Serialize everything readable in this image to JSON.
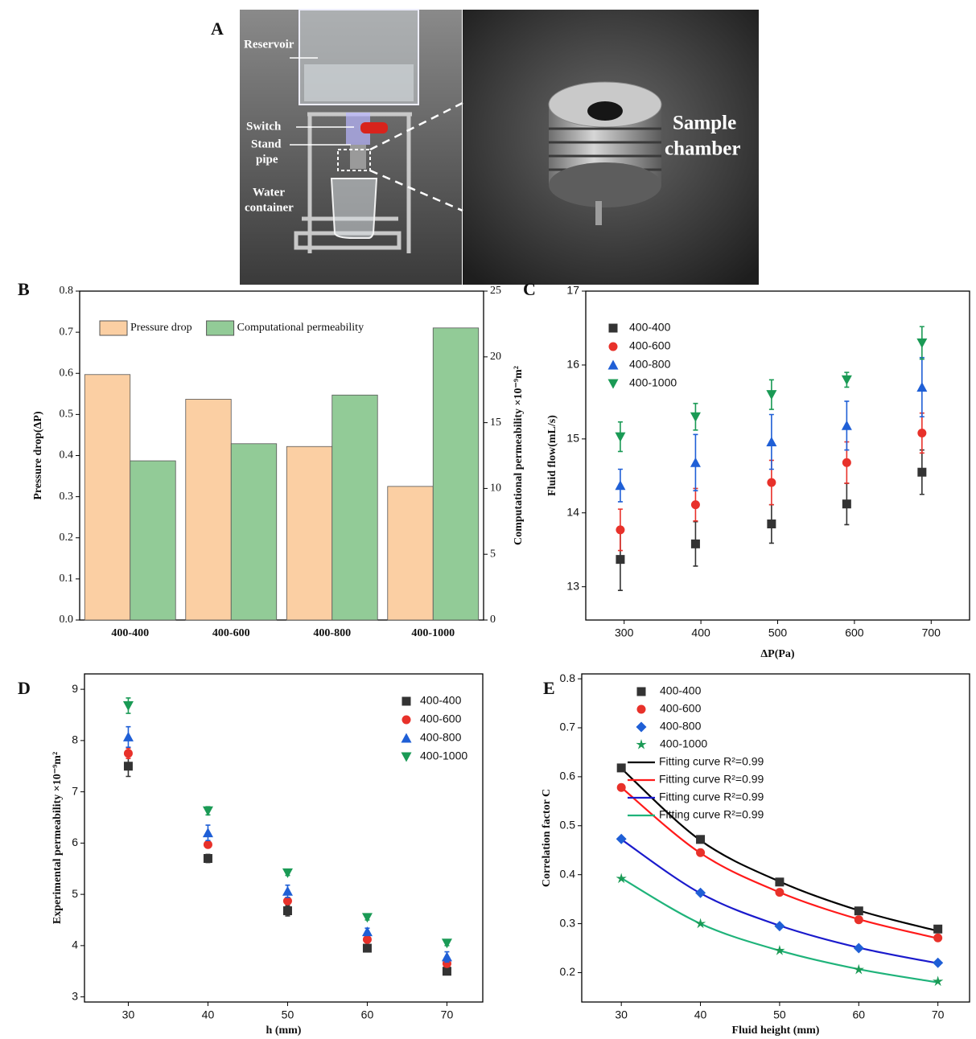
{
  "figure_a": {
    "label": "A",
    "annotations": {
      "reservoir": "Reservoir",
      "switch": "Switch",
      "stand_pipe": [
        "Stand",
        "pipe"
      ],
      "water_container": [
        "Water",
        "container"
      ],
      "sample_chamber": [
        "Sample",
        "chamber"
      ]
    }
  },
  "chart_data": [
    {
      "type": "bar",
      "label": "B",
      "categories": [
        "400-400",
        "400-600",
        "400-800",
        "400-1000"
      ],
      "series": [
        {
          "name": "Pressure drop",
          "color": "#fbcfa3",
          "values": [
            0.597,
            0.537,
            0.422,
            0.325
          ]
        },
        {
          "name": "Computational permeability",
          "color": "#92cb97",
          "values": [
            12.1,
            13.4,
            17.1,
            22.2
          ],
          "axis": "y2"
        }
      ],
      "ylabel": "Pressure drop(ΔP)",
      "y2label": "Computational permeability ×10⁻⁹m²",
      "ylim": [
        0,
        0.8
      ],
      "yticks": [
        {
          "value": 0,
          "label": "0.0"
        },
        0.1,
        0.2,
        0.3,
        0.4,
        0.5,
        0.6,
        0.7,
        0.8
      ],
      "y2lim": [
        0,
        25
      ],
      "y2ticks": [
        0,
        5,
        10,
        15,
        20,
        25
      ],
      "legend": "top"
    },
    {
      "type": "scatter",
      "label": "C",
      "x": [
        295,
        393,
        492,
        590,
        688
      ],
      "series": [
        {
          "name": "400-400",
          "color": "#333333",
          "marker": "square",
          "values": [
            13.37,
            13.58,
            13.85,
            14.12,
            14.55
          ],
          "errors": [
            0.42,
            0.3,
            0.26,
            0.28,
            0.3
          ]
        },
        {
          "name": "400-600",
          "color": "#e8312a",
          "marker": "circle",
          "values": [
            13.77,
            14.11,
            14.41,
            14.68,
            15.08
          ],
          "errors": [
            0.28,
            0.22,
            0.3,
            0.28,
            0.27
          ]
        },
        {
          "name": "400-800",
          "color": "#1f5fd6",
          "marker": "triangle-up",
          "values": [
            14.37,
            14.68,
            14.96,
            15.18,
            15.7
          ],
          "errors": [
            0.22,
            0.38,
            0.37,
            0.33,
            0.4
          ]
        },
        {
          "name": "400-1000",
          "color": "#1a9a55",
          "marker": "triangle-down",
          "values": [
            15.03,
            15.3,
            15.6,
            15.8,
            16.3
          ],
          "errors": [
            0.2,
            0.18,
            0.2,
            0.1,
            0.22
          ]
        }
      ],
      "xlabel": "ΔP(Pa)",
      "ylabel": "Fluid flow(mL/s)",
      "xlim": [
        250,
        750
      ],
      "xticks": [
        300,
        400,
        500,
        600,
        700
      ],
      "ylim": [
        12.55,
        17
      ],
      "yticks": [
        13,
        14,
        15,
        16,
        17
      ],
      "legend": "upper left"
    },
    {
      "type": "scatter",
      "label": "D",
      "x": [
        30,
        40,
        50,
        60,
        70
      ],
      "series": [
        {
          "name": "400-400",
          "color": "#333333",
          "marker": "square",
          "values": [
            7.5,
            5.7,
            4.68,
            3.95,
            3.5
          ],
          "errors": [
            0.2,
            0.08,
            0.1,
            0.05,
            0.05
          ]
        },
        {
          "name": "400-600",
          "color": "#e8312a",
          "marker": "circle",
          "values": [
            7.75,
            5.97,
            4.87,
            4.12,
            3.65
          ],
          "errors": [
            0.1,
            0.05,
            0.05,
            0.05,
            0.05
          ]
        },
        {
          "name": "400-800",
          "color": "#1f5fd6",
          "marker": "triangle-up",
          "values": [
            8.07,
            6.2,
            5.06,
            4.27,
            3.78
          ],
          "errors": [
            0.2,
            0.15,
            0.12,
            0.07,
            0.1
          ]
        },
        {
          "name": "400-1000",
          "color": "#1a9a55",
          "marker": "triangle-down",
          "values": [
            8.68,
            6.63,
            5.42,
            4.55,
            4.05
          ],
          "errors": [
            0.15,
            0.08,
            0.05,
            0.05,
            0.05
          ]
        }
      ],
      "xlabel": "h (mm)",
      "ylabel": "Experimental permeability ×10⁻⁹m²",
      "xlim": [
        24.5,
        74.5
      ],
      "xticks": [
        30,
        40,
        50,
        60,
        70
      ],
      "ylim": [
        2.9,
        9.3
      ],
      "yticks": [
        3,
        4,
        5,
        6,
        7,
        8,
        9
      ],
      "legend": "upper right"
    },
    {
      "type": "scatter",
      "label": "E",
      "x": [
        30,
        40,
        50,
        60,
        70
      ],
      "series": [
        {
          "name": "400-400",
          "color": "#333333",
          "marker": "square",
          "values": [
            0.618,
            0.472,
            0.385,
            0.326,
            0.289
          ]
        },
        {
          "name": "400-600",
          "color": "#e8312a",
          "marker": "circle",
          "values": [
            0.578,
            0.445,
            0.364,
            0.308,
            0.271
          ]
        },
        {
          "name": "400-800",
          "color": "#1f5fd6",
          "marker": "diamond",
          "values": [
            0.473,
            0.363,
            0.295,
            0.25,
            0.22
          ]
        },
        {
          "name": "400-1000",
          "color": "#1a9a55",
          "marker": "star",
          "values": [
            0.392,
            0.3,
            0.245,
            0.206,
            0.182
          ]
        },
        {
          "name": "Fitting curve R²=0.99",
          "color": "#000000",
          "line": true,
          "values": [
            0.617,
            0.47,
            0.386,
            0.327,
            0.285
          ]
        },
        {
          "name": "Fitting curve R²=0.99",
          "color": "#ff1a1a",
          "line": true,
          "values": [
            0.578,
            0.444,
            0.364,
            0.309,
            0.27
          ]
        },
        {
          "name": "Fitting curve R²=0.99",
          "color": "#1a1acc",
          "line": true,
          "values": [
            0.472,
            0.362,
            0.296,
            0.251,
            0.219
          ]
        },
        {
          "name": "Fitting curve R²=0.99",
          "color": "#1fb37a",
          "line": true,
          "values": [
            0.393,
            0.3,
            0.245,
            0.207,
            0.18
          ]
        }
      ],
      "xlabel": "Fluid height (mm)",
      "ylabel": "Correlation factor C",
      "xlim": [
        25,
        74
      ],
      "xticks": [
        30,
        40,
        50,
        60,
        70
      ],
      "ylim": [
        0.14,
        0.81
      ],
      "yticks": [
        0.2,
        0.3,
        0.4,
        0.5,
        0.6,
        0.7,
        0.8
      ],
      "legend": "upper right"
    }
  ]
}
